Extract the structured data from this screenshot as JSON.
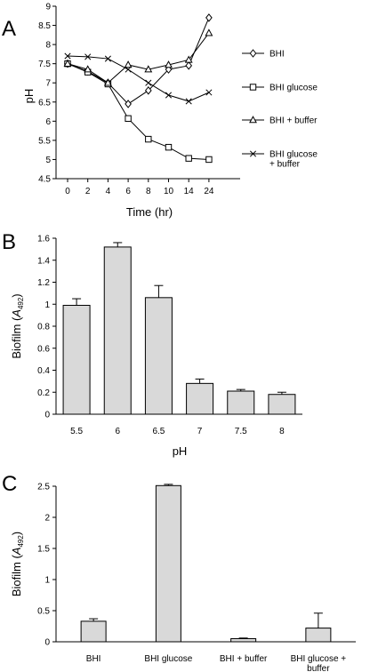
{
  "chart_data": [
    {
      "panel": "A",
      "type": "line",
      "xlabel": "Time (hr)",
      "ylabel": "pH",
      "categories": [
        "0",
        "2",
        "4",
        "6",
        "8",
        "10",
        "14",
        "24"
      ],
      "ylim": [
        4.5,
        9
      ],
      "yticks": [
        "4.5",
        "5",
        "5.5",
        "6",
        "6.5",
        "7",
        "7.5",
        "8",
        "8.5",
        "9"
      ],
      "grid": false,
      "legend_position": "right",
      "series": [
        {
          "name": "BHI",
          "marker": "diamond",
          "values": [
            7.5,
            7.3,
            7.0,
            6.45,
            6.8,
            7.35,
            7.45,
            8.7
          ]
        },
        {
          "name": "BHI glucose",
          "marker": "square",
          "values": [
            7.5,
            7.28,
            6.97,
            6.07,
            5.53,
            5.32,
            5.03,
            5.0
          ]
        },
        {
          "name": "BHI + buffer",
          "marker": "triangle",
          "values": [
            7.5,
            7.35,
            7.0,
            7.47,
            7.35,
            7.47,
            7.6,
            8.3
          ]
        },
        {
          "name": "BHI glucose\n+ buffer",
          "marker": "x",
          "values": [
            7.7,
            7.68,
            7.63,
            7.35,
            7.0,
            6.68,
            6.52,
            6.75
          ]
        }
      ]
    },
    {
      "panel": "B",
      "type": "bar",
      "xlabel": "pH",
      "ylabel": "Biofilm (A492)",
      "categories": [
        "5.5",
        "6",
        "6.5",
        "7",
        "7.5",
        "8"
      ],
      "values": [
        0.99,
        1.52,
        1.06,
        0.28,
        0.21,
        0.18
      ],
      "errors": [
        0.06,
        0.04,
        0.11,
        0.04,
        0.015,
        0.02
      ],
      "ylim": [
        0,
        1.6
      ],
      "yticks": [
        "0",
        "0.2",
        "0.4",
        "0.6",
        "0.8",
        "1",
        "1.2",
        "1.4",
        "1.6"
      ],
      "bar_color": "#d9d9d9"
    },
    {
      "panel": "C",
      "type": "bar",
      "xlabel": "",
      "ylabel": "Biofilm (A492)",
      "categories": [
        "BHI",
        "BHI glucose",
        "BHI + buffer",
        "BHI glucose +\nbuffer"
      ],
      "values": [
        0.33,
        2.51,
        0.05,
        0.22
      ],
      "errors": [
        0.04,
        0.02,
        0.01,
        0.24
      ],
      "ylim": [
        0,
        2.5
      ],
      "yticks": [
        "0",
        "0.5",
        "1",
        "1.5",
        "2",
        "2.5"
      ],
      "bar_color": "#d9d9d9"
    }
  ],
  "panel_labels": [
    "A",
    "B",
    "C"
  ],
  "ylabel_parts": {
    "prefix": "Biofilm (",
    "italic": "A",
    "sub": "492",
    "suffix": ")"
  }
}
